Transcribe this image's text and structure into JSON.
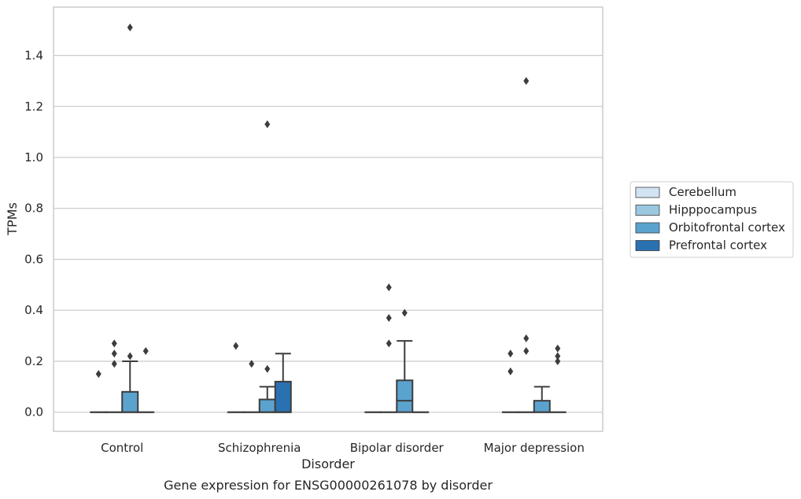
{
  "chart_data": {
    "type": "box",
    "title": "",
    "caption": "Gene expression for ENSG00000261078 by disorder",
    "xlabel": "Disorder",
    "ylabel": "TPMs",
    "ylim": [
      -0.075,
      1.59
    ],
    "yticks": [
      "0.0",
      "0.2",
      "0.4",
      "0.6",
      "0.8",
      "1.0",
      "1.2",
      "1.4"
    ],
    "grid": "horizontal",
    "legend_position": "right",
    "categories": [
      "Control",
      "Schizophrenia",
      "Bipolar disorder",
      "Major depression"
    ],
    "series": [
      {
        "name": "Cerebellum",
        "color": "#d2e3f3"
      },
      {
        "name": "Hipppocampus",
        "color": "#9ac8e0"
      },
      {
        "name": "Orbitofrontal cortex",
        "color": "#5ba3cf"
      },
      {
        "name": "Prefrontal cortex",
        "color": "#2a71b1"
      }
    ],
    "boxes": [
      {
        "category": "Control",
        "series": "Cerebellum",
        "q1": 0,
        "median": 0,
        "q3": 0,
        "whisker_low": 0,
        "whisker_high": 0,
        "outliers": [
          0.15
        ]
      },
      {
        "category": "Control",
        "series": "Hipppocampus",
        "q1": 0,
        "median": 0,
        "q3": 0,
        "whisker_low": 0,
        "whisker_high": 0,
        "outliers": [
          0.19,
          0.23,
          0.27
        ]
      },
      {
        "category": "Control",
        "series": "Orbitofrontal cortex",
        "q1": 0,
        "median": 0,
        "q3": 0.08,
        "whisker_low": 0,
        "whisker_high": 0.2,
        "outliers": [
          0.22,
          1.51
        ]
      },
      {
        "category": "Control",
        "series": "Prefrontal cortex",
        "q1": 0,
        "median": 0,
        "q3": 0,
        "whisker_low": 0,
        "whisker_high": 0,
        "outliers": [
          0.24
        ]
      },
      {
        "category": "Schizophrenia",
        "series": "Cerebellum",
        "q1": 0,
        "median": 0,
        "q3": 0,
        "whisker_low": 0,
        "whisker_high": 0,
        "outliers": [
          0.26
        ]
      },
      {
        "category": "Schizophrenia",
        "series": "Hipppocampus",
        "q1": 0,
        "median": 0,
        "q3": 0,
        "whisker_low": 0,
        "whisker_high": 0,
        "outliers": [
          0.19
        ]
      },
      {
        "category": "Schizophrenia",
        "series": "Orbitofrontal cortex",
        "q1": 0,
        "median": 0,
        "q3": 0.05,
        "whisker_low": 0,
        "whisker_high": 0.1,
        "outliers": [
          0.17,
          1.13
        ]
      },
      {
        "category": "Schizophrenia",
        "series": "Prefrontal cortex",
        "q1": 0,
        "median": 0,
        "q3": 0.12,
        "whisker_low": 0,
        "whisker_high": 0.23,
        "outliers": []
      },
      {
        "category": "Bipolar disorder",
        "series": "Cerebellum",
        "q1": 0,
        "median": 0,
        "q3": 0,
        "whisker_low": 0,
        "whisker_high": 0,
        "outliers": []
      },
      {
        "category": "Bipolar disorder",
        "series": "Hipppocampus",
        "q1": 0,
        "median": 0,
        "q3": 0,
        "whisker_low": 0,
        "whisker_high": 0,
        "outliers": [
          0.27,
          0.37,
          0.49
        ]
      },
      {
        "category": "Bipolar disorder",
        "series": "Orbitofrontal cortex",
        "q1": 0,
        "median": 0.045,
        "q3": 0.125,
        "whisker_low": 0,
        "whisker_high": 0.28,
        "outliers": [
          0.39
        ]
      },
      {
        "category": "Bipolar disorder",
        "series": "Prefrontal cortex",
        "q1": 0,
        "median": 0,
        "q3": 0,
        "whisker_low": 0,
        "whisker_high": 0,
        "outliers": []
      },
      {
        "category": "Major depression",
        "series": "Cerebellum",
        "q1": 0,
        "median": 0,
        "q3": 0,
        "whisker_low": 0,
        "whisker_high": 0,
        "outliers": [
          0.16,
          0.23
        ]
      },
      {
        "category": "Major depression",
        "series": "Hipppocampus",
        "q1": 0,
        "median": 0,
        "q3": 0,
        "whisker_low": 0,
        "whisker_high": 0,
        "outliers": [
          0.24,
          0.29,
          1.3
        ]
      },
      {
        "category": "Major depression",
        "series": "Orbitofrontal cortex",
        "q1": 0,
        "median": 0,
        "q3": 0.045,
        "whisker_low": 0,
        "whisker_high": 0.1,
        "outliers": []
      },
      {
        "category": "Major depression",
        "series": "Prefrontal cortex",
        "q1": 0,
        "median": 0,
        "q3": 0,
        "whisker_low": 0,
        "whisker_high": 0,
        "outliers": [
          0.2,
          0.22,
          0.25
        ]
      }
    ]
  }
}
